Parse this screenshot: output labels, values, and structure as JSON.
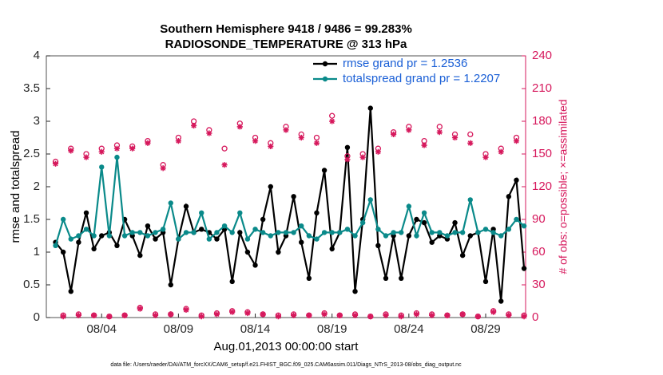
{
  "chart_data": {
    "type": "line",
    "title": "Southern Hemisphere 9418 / 9486 = 99.283%",
    "subtitle": "RADIOSONDE_TEMPERATURE @ 313 hPa",
    "xlabel": "Aug.01,2013 00:00:00 start",
    "ylabel": "rmse and totalspread",
    "y2label": "# of obs: o=possible; ×=assimilated",
    "footnote": "data file: /Users/raeder/DAI/ATM_forcXX/CAM6_setup/f.e21.FHIST_BGC.f09_025.CAM6assim.011/Diags_NTrS_2013-08/obs_diag_output.nc",
    "legend_position": "upper right",
    "xlim": [
      0.4,
      31.6
    ],
    "xticks": [
      {
        "value": 4,
        "label": "08/04"
      },
      {
        "value": 9,
        "label": "08/09"
      },
      {
        "value": 14,
        "label": "08/14"
      },
      {
        "value": 19,
        "label": "08/19"
      },
      {
        "value": 24,
        "label": "08/24"
      },
      {
        "value": 29,
        "label": "08/29"
      }
    ],
    "ylim": [
      0,
      4
    ],
    "yticks": [
      0,
      0.5,
      1,
      1.5,
      2,
      2.5,
      3,
      3.5,
      4
    ],
    "y2lim": [
      0,
      240
    ],
    "y2ticks": [
      0,
      30,
      60,
      90,
      120,
      150,
      180,
      210,
      240
    ],
    "y2color": "#d6185c",
    "x": [
      1,
      1.5,
      2,
      2.5,
      3,
      3.5,
      4,
      4.5,
      5,
      5.5,
      6,
      6.5,
      7,
      7.5,
      8,
      8.5,
      9,
      9.5,
      10,
      10.5,
      11,
      11.5,
      12,
      12.5,
      13,
      13.5,
      14,
      14.5,
      15,
      15.5,
      16,
      16.5,
      17,
      17.5,
      18,
      18.5,
      19,
      19.5,
      20,
      20.5,
      21,
      21.5,
      22,
      22.5,
      23,
      23.5,
      24,
      24.5,
      25,
      25.5,
      26,
      26.5,
      27,
      27.5,
      28,
      28.5,
      29,
      29.5,
      30,
      30.5,
      31,
      31.5
    ],
    "series": [
      {
        "name": "rmse grand pr = 1.2536",
        "color": "#000000",
        "marker": "dot",
        "values": [
          1.15,
          1.0,
          0.4,
          1.15,
          1.6,
          1.05,
          1.25,
          1.3,
          1.1,
          1.5,
          1.25,
          0.95,
          1.4,
          1.2,
          1.3,
          0.5,
          1.2,
          1.7,
          1.3,
          1.35,
          1.3,
          1.2,
          1.35,
          0.55,
          1.3,
          1.0,
          0.8,
          1.5,
          2.0,
          1.0,
          1.25,
          1.85,
          1.15,
          0.6,
          1.6,
          2.25,
          1.05,
          1.3,
          2.6,
          0.4,
          1.5,
          3.2,
          1.1,
          0.6,
          1.25,
          0.6,
          1.25,
          1.5,
          1.45,
          1.15,
          1.25,
          1.2,
          1.45,
          0.95,
          1.25,
          1.3,
          0.55,
          1.35,
          0.25,
          1.85,
          2.1,
          0.75
        ]
      },
      {
        "name": "totalspread grand pr = 1.2207",
        "color": "#0a8a8a",
        "marker": "dot",
        "values": [
          1.1,
          1.5,
          1.2,
          1.25,
          1.35,
          1.25,
          2.3,
          1.25,
          2.45,
          1.25,
          1.3,
          1.3,
          1.25,
          1.3,
          1.35,
          1.75,
          1.2,
          1.3,
          1.3,
          1.6,
          1.2,
          1.3,
          1.4,
          1.3,
          1.6,
          1.2,
          1.35,
          1.3,
          1.25,
          1.3,
          1.3,
          1.3,
          1.4,
          1.25,
          1.2,
          1.3,
          1.3,
          1.3,
          1.35,
          1.25,
          1.45,
          1.8,
          1.35,
          1.25,
          1.3,
          1.3,
          1.7,
          1.25,
          1.6,
          1.3,
          1.3,
          1.25,
          1.3,
          1.3,
          1.8,
          1.3,
          1.35,
          1.3,
          1.25,
          1.35,
          1.5,
          1.4
        ]
      },
      {
        "color": "#d6185c",
        "axis": "y2",
        "marker": "circle",
        "values": [
          143,
          2,
          155,
          3,
          150,
          2,
          155,
          1,
          158,
          2,
          157,
          9,
          162,
          3,
          140,
          3,
          165,
          8,
          180,
          2,
          172,
          4,
          155,
          6,
          178,
          5,
          165,
          3,
          160,
          2,
          175,
          3,
          168,
          2,
          165,
          4,
          185,
          2,
          148,
          3,
          150,
          1,
          155,
          3,
          170,
          2,
          175,
          4,
          162,
          3,
          175,
          2,
          168,
          3,
          168,
          1,
          150,
          6,
          155,
          3,
          165,
          2
        ]
      },
      {
        "color": "#d6185c",
        "axis": "y2",
        "marker": "star",
        "values": [
          141,
          1,
          153,
          2,
          147,
          2,
          152,
          1,
          155,
          2,
          155,
          8,
          160,
          2,
          137,
          3,
          162,
          7,
          176,
          1,
          169,
          3,
          140,
          5,
          175,
          4,
          162,
          3,
          157,
          1,
          172,
          2,
          165,
          2,
          160,
          3,
          180,
          2,
          145,
          2,
          147,
          1,
          152,
          2,
          168,
          1,
          172,
          3,
          158,
          2,
          170,
          2,
          165,
          3,
          160,
          1,
          147,
          5,
          152,
          2,
          162,
          1
        ]
      }
    ]
  }
}
